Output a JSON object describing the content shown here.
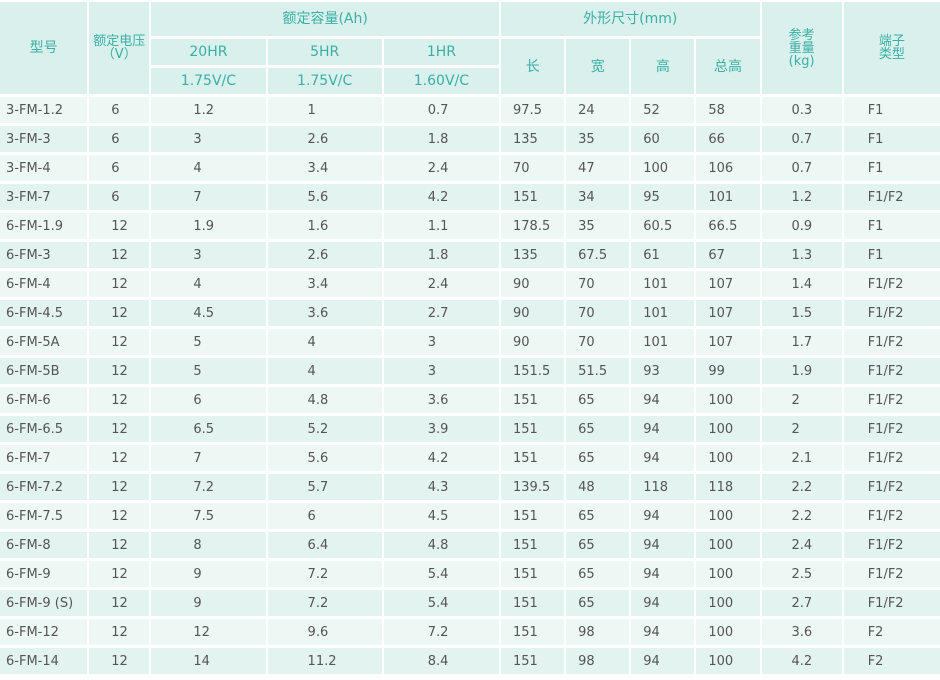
{
  "header": {
    "model": "型号",
    "voltage_line1": "额定电压",
    "voltage_line2": "（V）",
    "capacity_group": "额定容量(Ah)",
    "cap_20hr": "20HR",
    "cap_20hr_cutoff": "1.75V/C",
    "cap_5hr": "5HR",
    "cap_5hr_cutoff": "1.75V/C",
    "cap_1hr": "1HR",
    "cap_1hr_cutoff": "1.60V/C",
    "dims_group": "外形尺寸(mm)",
    "length": "长",
    "width": "宽",
    "height": "高",
    "total_height": "总高",
    "weight_line1": "参考",
    "weight_line2": "重量",
    "weight_line3": "(kg)",
    "terminal_line1": "端子",
    "terminal_line2": "类型"
  },
  "rows": [
    {
      "model": "3-FM-1.2",
      "v": "6",
      "c20": "1.2",
      "c5": "1",
      "c1": "0.7",
      "l": "97.5",
      "w": "24",
      "h": "52",
      "th": "58",
      "kg": "0.3",
      "term": "F1"
    },
    {
      "model": "3-FM-3",
      "v": "6",
      "c20": "3",
      "c5": "2.6",
      "c1": "1.8",
      "l": "135",
      "w": "35",
      "h": "60",
      "th": "66",
      "kg": "0.7",
      "term": "F1"
    },
    {
      "model": "3-FM-4",
      "v": "6",
      "c20": "4",
      "c5": "3.4",
      "c1": "2.4",
      "l": "70",
      "w": "47",
      "h": "100",
      "th": "106",
      "kg": "0.7",
      "term": "F1"
    },
    {
      "model": "3-FM-7",
      "v": "6",
      "c20": "7",
      "c5": "5.6",
      "c1": "4.2",
      "l": "151",
      "w": "34",
      "h": "95",
      "th": "101",
      "kg": "1.2",
      "term": "F1/F2"
    },
    {
      "model": "6-FM-1.9",
      "v": "12",
      "c20": "1.9",
      "c5": "1.6",
      "c1": "1.1",
      "l": "178.5",
      "w": "35",
      "h": "60.5",
      "th": "66.5",
      "kg": "0.9",
      "term": "F1"
    },
    {
      "model": "6-FM-3",
      "v": "12",
      "c20": "3",
      "c5": "2.6",
      "c1": "1.8",
      "l": "135",
      "w": "67.5",
      "h": "61",
      "th": "67",
      "kg": "1.3",
      "term": "F1"
    },
    {
      "model": "6-FM-4",
      "v": "12",
      "c20": "4",
      "c5": "3.4",
      "c1": "2.4",
      "l": "90",
      "w": "70",
      "h": "101",
      "th": "107",
      "kg": "1.4",
      "term": "F1/F2"
    },
    {
      "model": "6-FM-4.5",
      "v": "12",
      "c20": "4.5",
      "c5": "3.6",
      "c1": "2.7",
      "l": "90",
      "w": "70",
      "h": "101",
      "th": "107",
      "kg": "1.5",
      "term": "F1/F2"
    },
    {
      "model": "6-FM-5A",
      "v": "12",
      "c20": "5",
      "c5": "4",
      "c1": "3",
      "l": "90",
      "w": "70",
      "h": "101",
      "th": "107",
      "kg": "1.7",
      "term": "F1/F2"
    },
    {
      "model": "6-FM-5B",
      "v": "12",
      "c20": "5",
      "c5": "4",
      "c1": "3",
      "l": "151.5",
      "w": "51.5",
      "h": "93",
      "th": "99",
      "kg": "1.9",
      "term": "F1/F2"
    },
    {
      "model": "6-FM-6",
      "v": "12",
      "c20": "6",
      "c5": "4.8",
      "c1": "3.6",
      "l": "151",
      "w": "65",
      "h": "94",
      "th": "100",
      "kg": "2",
      "term": "F1/F2"
    },
    {
      "model": "6-FM-6.5",
      "v": "12",
      "c20": "6.5",
      "c5": "5.2",
      "c1": "3.9",
      "l": "151",
      "w": "65",
      "h": "94",
      "th": "100",
      "kg": "2",
      "term": "F1/F2"
    },
    {
      "model": "6-FM-7",
      "v": "12",
      "c20": "7",
      "c5": "5.6",
      "c1": "4.2",
      "l": "151",
      "w": "65",
      "h": "94",
      "th": "100",
      "kg": "2.1",
      "term": "F1/F2"
    },
    {
      "model": "6-FM-7.2",
      "v": "12",
      "c20": "7.2",
      "c5": "5.7",
      "c1": "4.3",
      "l": "139.5",
      "w": "48",
      "h": "118",
      "th": "118",
      "kg": "2.2",
      "term": "F1/F2"
    },
    {
      "model": "6-FM-7.5",
      "v": "12",
      "c20": "7.5",
      "c5": "6",
      "c1": "4.5",
      "l": "151",
      "w": "65",
      "h": "94",
      "th": "100",
      "kg": "2.2",
      "term": "F1/F2"
    },
    {
      "model": "6-FM-8",
      "v": "12",
      "c20": "8",
      "c5": "6.4",
      "c1": "4.8",
      "l": "151",
      "w": "65",
      "h": "94",
      "th": "100",
      "kg": "2.4",
      "term": "F1/F2"
    },
    {
      "model": "6-FM-9",
      "v": "12",
      "c20": "9",
      "c5": "7.2",
      "c1": "5.4",
      "l": "151",
      "w": "65",
      "h": "94",
      "th": "100",
      "kg": "2.5",
      "term": "F1/F2"
    },
    {
      "model": "6-FM-9 (S)",
      "v": "12",
      "c20": "9",
      "c5": "7.2",
      "c1": "5.4",
      "l": "151",
      "w": "65",
      "h": "94",
      "th": "100",
      "kg": "2.7",
      "term": "F1/F2"
    },
    {
      "model": "6-FM-12",
      "v": "12",
      "c20": "12",
      "c5": "9.6",
      "c1": "7.2",
      "l": "151",
      "w": "98",
      "h": "94",
      "th": "100",
      "kg": "3.6",
      "term": "F2"
    },
    {
      "model": "6-FM-14",
      "v": "12",
      "c20": "14",
      "c5": "11.2",
      "c1": "8.4",
      "l": "151",
      "w": "98",
      "h": "94",
      "th": "100",
      "kg": "4.2",
      "term": "F2"
    }
  ],
  "colors": {
    "header_bg": "#d9f0ec",
    "header_text": "#3ab0a5",
    "row_bg_a": "#edf8f5",
    "row_bg_b": "#e3f3f0",
    "cell_text": "#555555"
  }
}
